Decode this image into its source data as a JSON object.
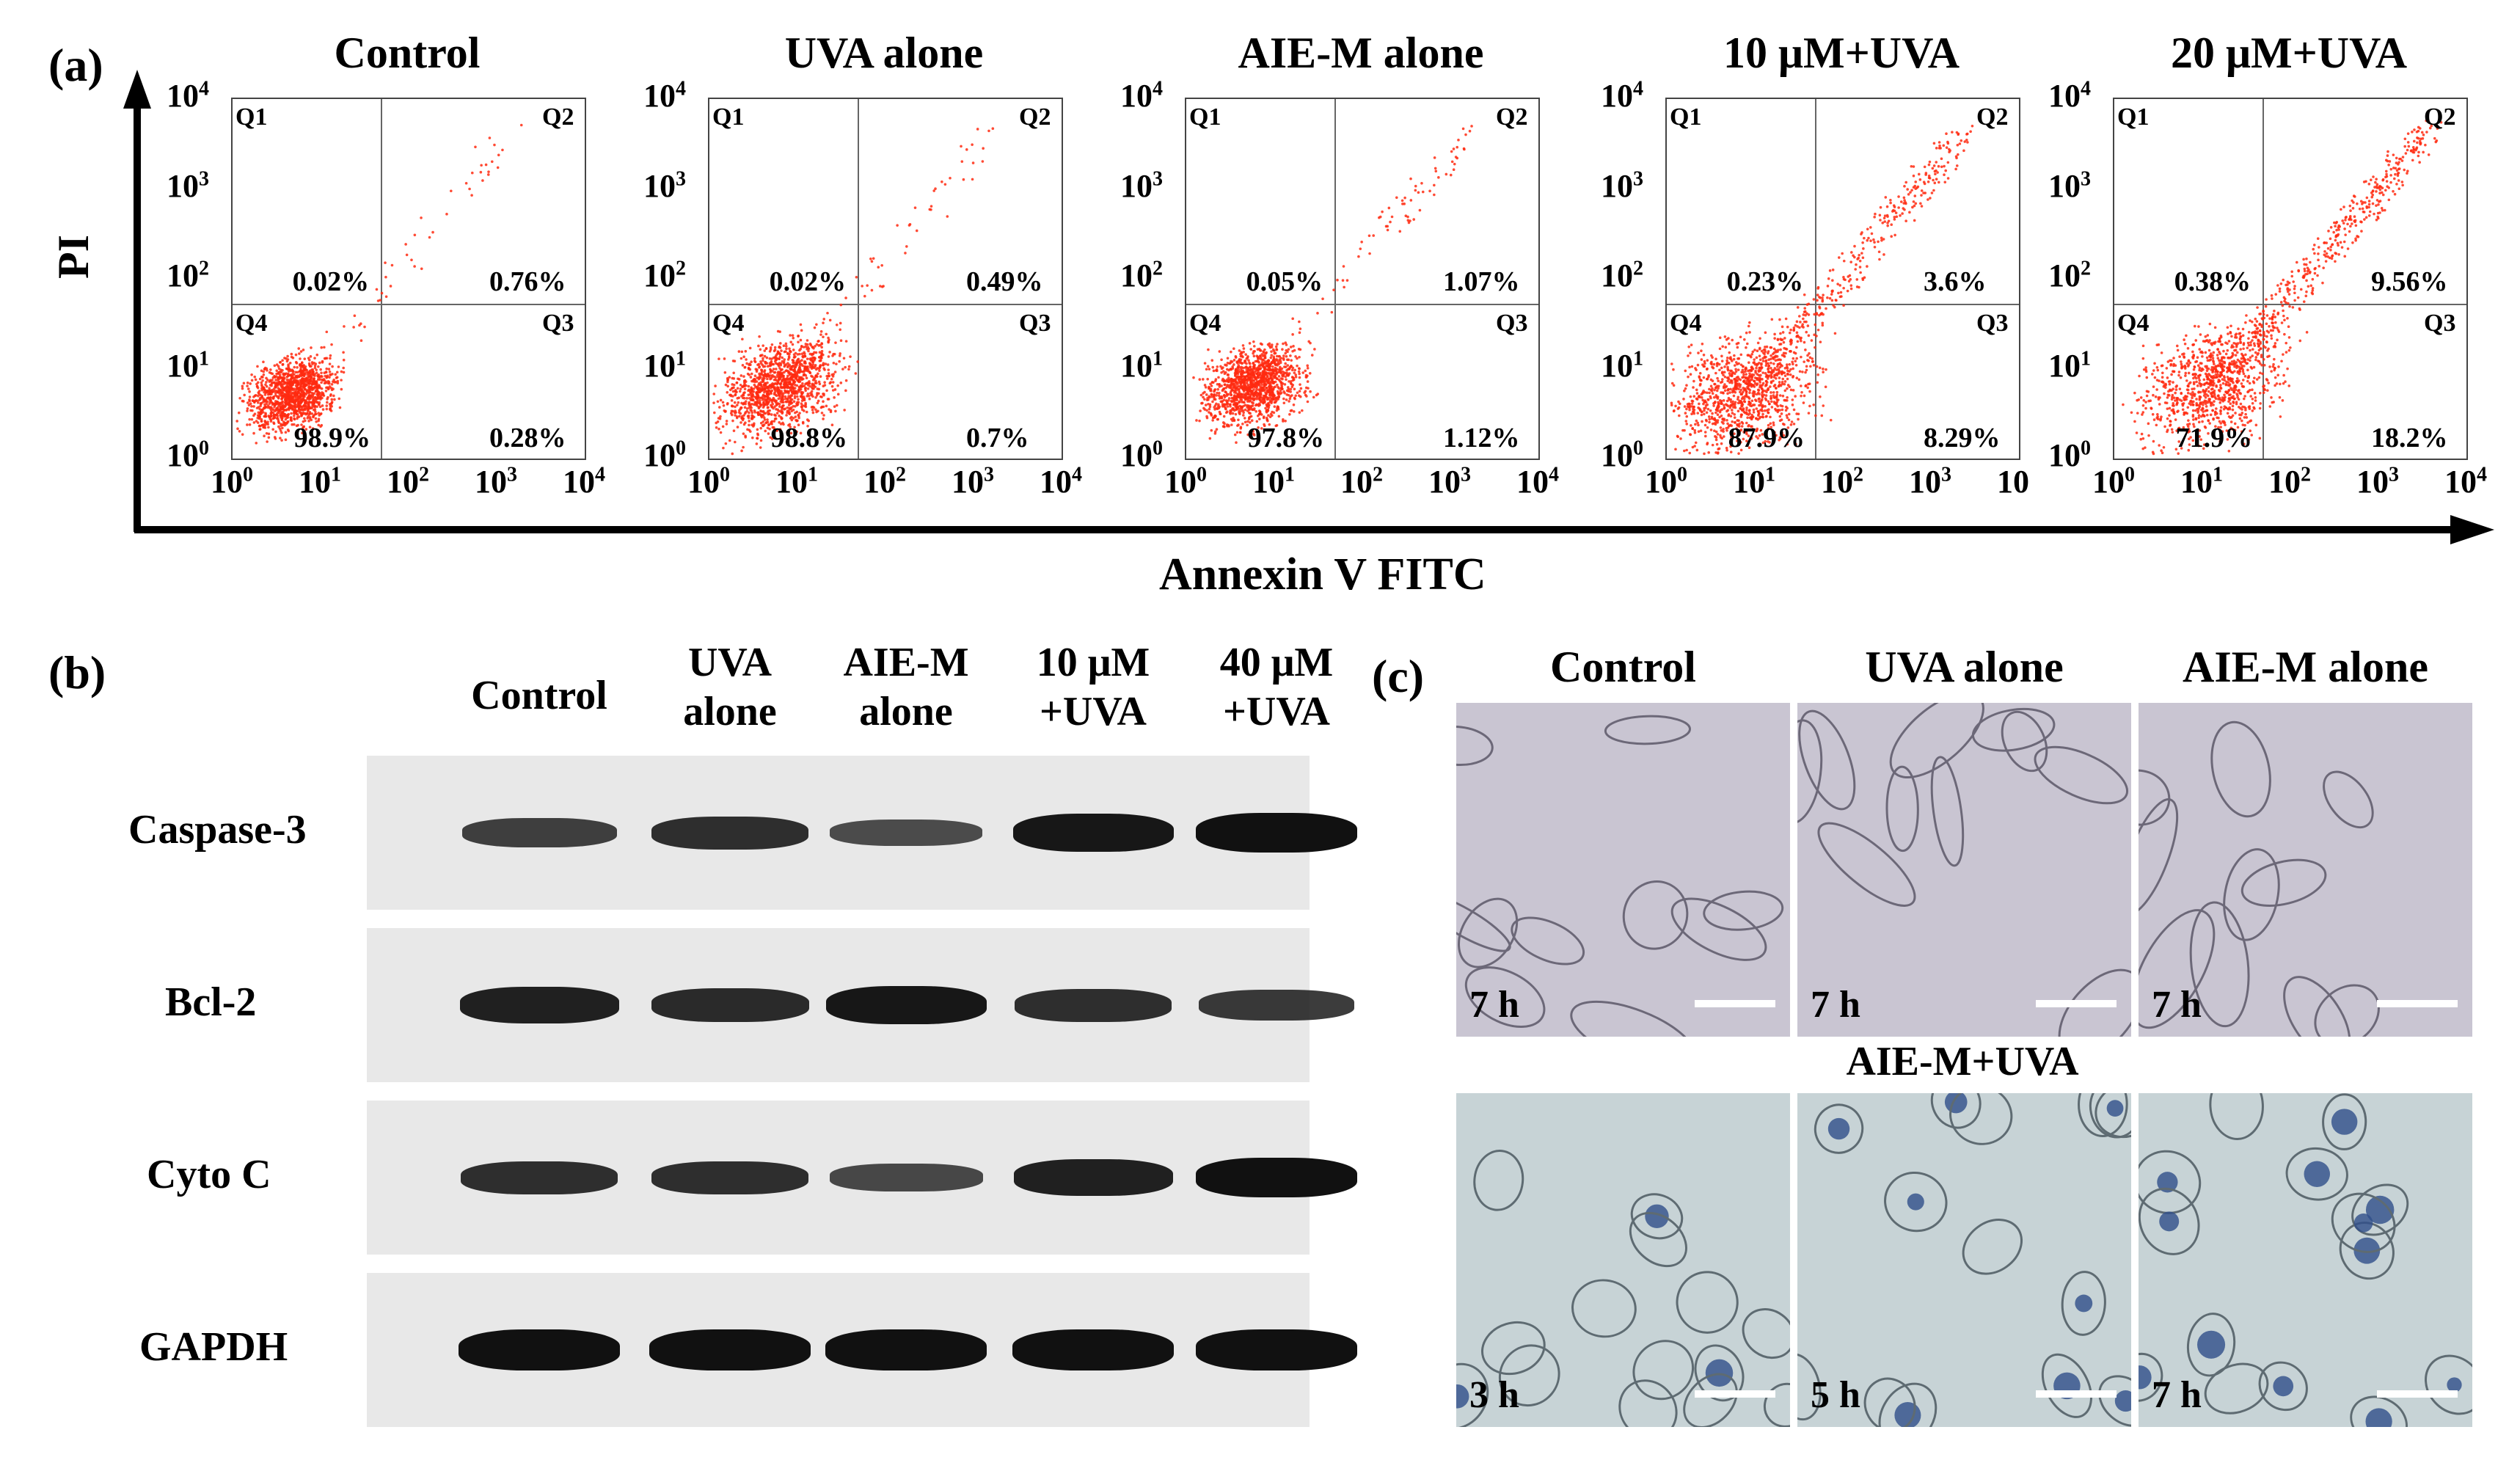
{
  "panel_a": {
    "letter": "(a)",
    "y_axis_label": "PI",
    "x_axis_label": "Annexin V FITC",
    "quadrant_labels": [
      "Q1",
      "Q2",
      "Q3",
      "Q4"
    ],
    "plots": [
      {
        "title": "Control",
        "q1": "0.02%",
        "q2": "0.76%",
        "q3": "0.28%",
        "q4": "98.9%",
        "x_end": "4"
      },
      {
        "title": "UVA alone",
        "q1": "0.02%",
        "q2": "0.49%",
        "q3": "0.7%",
        "q4": "98.8%",
        "x_end": "4"
      },
      {
        "title": "AIE-M alone",
        "q1": "0.05%",
        "q2": "1.07%",
        "q3": "1.12%",
        "q4": "97.8%",
        "x_end": "4"
      },
      {
        "title": "10 μM+UVA",
        "q1": "0.23%",
        "q2": "3.6%",
        "q3": "8.29%",
        "q4": "87.9%",
        "x_end": ""
      },
      {
        "title": "20 μM+UVA",
        "q1": "0.38%",
        "q2": "9.56%",
        "q3": "18.2%",
        "q4": "71.9%",
        "x_end": "4"
      }
    ]
  },
  "panel_b": {
    "letter": "(b)",
    "lanes": [
      "Control",
      "UVA\nalone",
      "AIE-M\nalone",
      "10 μM\n+UVA",
      "40 μM\n+UVA"
    ],
    "rows": [
      {
        "label": "Caspase-3",
        "intensity": [
          0.55,
          0.7,
          0.4,
          0.95,
          1.0
        ]
      },
      {
        "label": "Bcl-2",
        "intensity": [
          0.85,
          0.75,
          0.95,
          0.7,
          0.6
        ]
      },
      {
        "label": "Cyto C",
        "intensity": [
          0.7,
          0.7,
          0.45,
          0.85,
          1.0
        ]
      },
      {
        "label": "GAPDH",
        "intensity": [
          1.0,
          1.0,
          1.0,
          1.0,
          1.0
        ]
      }
    ]
  },
  "panel_c": {
    "letter": "(c)",
    "top_titles": [
      "Control",
      "UVA alone",
      "AIE-M alone"
    ],
    "top_times": [
      "7 h",
      "7 h",
      "7 h"
    ],
    "bottom_title": "AIE-M+UVA",
    "bottom_times": [
      "3 h",
      "5 h",
      "7 h"
    ]
  },
  "colors": {
    "dots": "#ff2a10",
    "blot_bg": "#e8e8e8",
    "band": "#111111",
    "micro_top": "#c9c5d2",
    "micro_bottom": "#c7d3d6",
    "stain": "#2f4f8a"
  }
}
